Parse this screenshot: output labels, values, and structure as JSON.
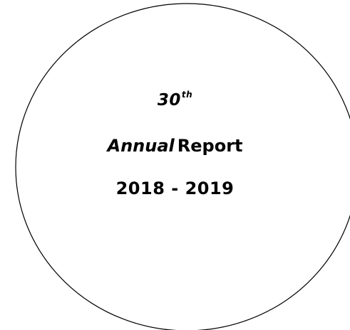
{
  "cover": {
    "edition_number": "30",
    "edition_suffix": "th",
    "annual_word": "Annual",
    "report_word": "Report",
    "year_range": "2018 - 2019"
  }
}
